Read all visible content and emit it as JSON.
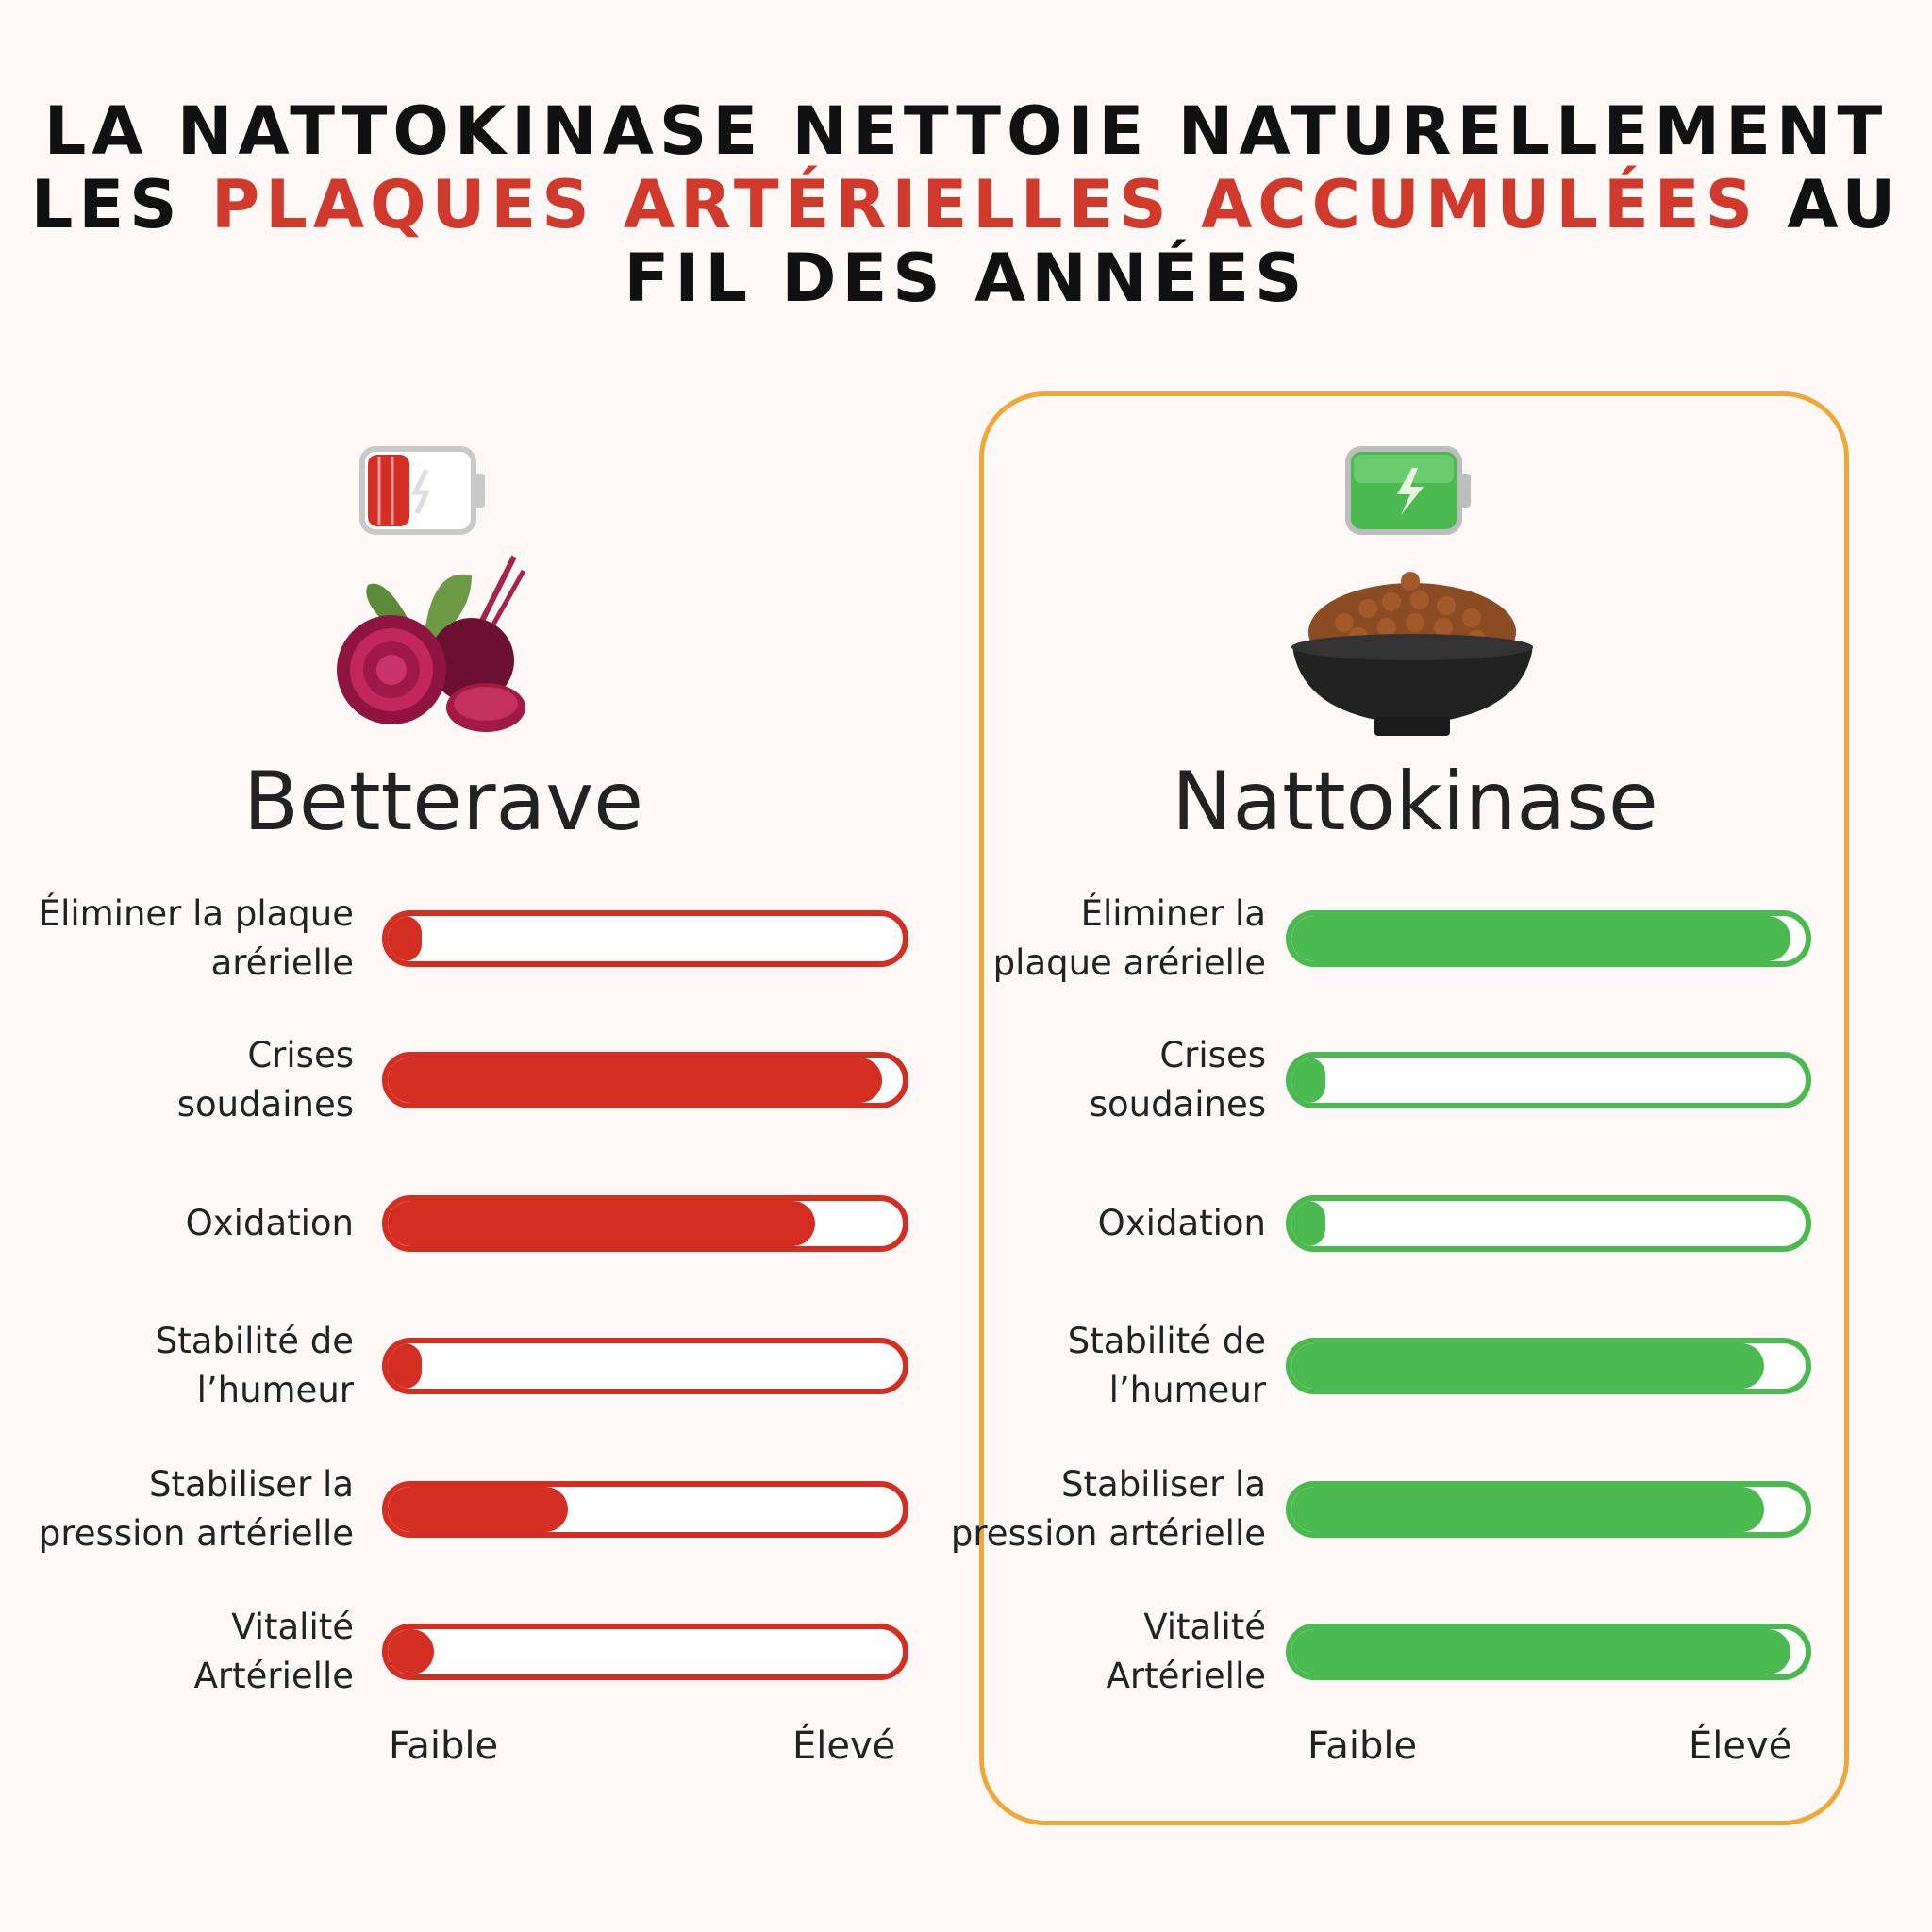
{
  "title": {
    "line1": "LA NATTOKINASE NETTOIE NATURELLEMENT",
    "line2_pre": "LES ",
    "line2_highlight": "PLAQUES ARTÉRIELLES ACCUMULÉES",
    "line2_post": " AU",
    "line3": "FIL DES ANNÉES"
  },
  "colors": {
    "highlight": "#d03a2c",
    "betterave": "#d42d22",
    "nattokinase": "#4ab94f",
    "frame": "#f0a73a"
  },
  "scale": {
    "low": "Faible",
    "high": "Élevé"
  },
  "chart_data": {
    "type": "bar",
    "orientation": "horizontal",
    "xlim": [
      0,
      100
    ],
    "categories": [
      "Éliminer la plaque arérielle",
      "Crises soudaines",
      "Oxidation",
      "Stabilité de l'humeur",
      "Stabiliser la pression artérielle",
      "Vitalité Artérielle"
    ],
    "series": [
      {
        "name": "Betterave",
        "icon": "low-battery-icon",
        "image": "beetroot-icon",
        "labels": [
          [
            "Éliminer la plaque",
            "arérielle"
          ],
          [
            "Crises",
            "soudaines"
          ],
          [
            "Oxidation"
          ],
          [
            "Stabilité de",
            "l’humeur"
          ],
          [
            "Stabiliser la",
            "pression artérielle"
          ],
          [
            "Vitalité",
            "Artérielle"
          ]
        ],
        "values": [
          6,
          96,
          83,
          6,
          35,
          9
        ]
      },
      {
        "name": "Nattokinase",
        "icon": "full-battery-icon",
        "image": "natto-bowl-icon",
        "labels": [
          [
            "Éliminer la",
            "plaque arérielle"
          ],
          [
            "Crises",
            "soudaines"
          ],
          [
            "Oxidation"
          ],
          [
            "Stabilité de",
            "l’humeur"
          ],
          [
            "Stabiliser la",
            "pression artérielle"
          ],
          [
            "Vitalité",
            "Artérielle"
          ]
        ],
        "values": [
          97,
          5,
          5,
          92,
          92,
          97
        ]
      }
    ]
  }
}
